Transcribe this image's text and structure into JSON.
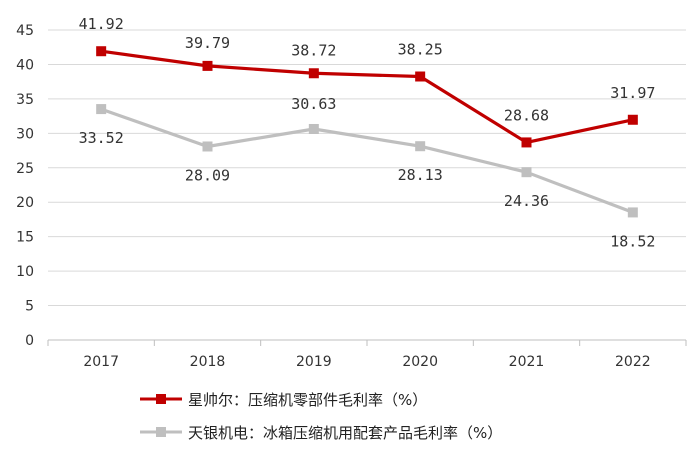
{
  "chart_data": {
    "type": "line",
    "title": "",
    "xlabel": "",
    "ylabel": "",
    "categories": [
      "2017",
      "2018",
      "2019",
      "2020",
      "2021",
      "2022"
    ],
    "ylim": [
      0,
      45
    ],
    "yticks": [
      0,
      5,
      10,
      15,
      20,
      25,
      30,
      35,
      40,
      45
    ],
    "grid": true,
    "legend_position": "bottom",
    "series": [
      {
        "name": "星帅尔：压缩机零部件毛利率（%）",
        "color": "#c00000",
        "values": [
          41.92,
          39.79,
          38.72,
          38.25,
          28.68,
          31.97
        ],
        "labels": [
          "41.92",
          "39.79",
          "38.72",
          "38.25",
          "28.68",
          "31.97"
        ]
      },
      {
        "name": "天银机电：冰箱压缩机用配套产品毛利率（%）",
        "color": "#bfbfbf",
        "values": [
          33.52,
          28.09,
          30.63,
          28.13,
          24.36,
          18.52
        ],
        "labels": [
          "33.52",
          "28.09",
          "30.63",
          "28.13",
          "24.36",
          "18.52"
        ]
      }
    ]
  }
}
